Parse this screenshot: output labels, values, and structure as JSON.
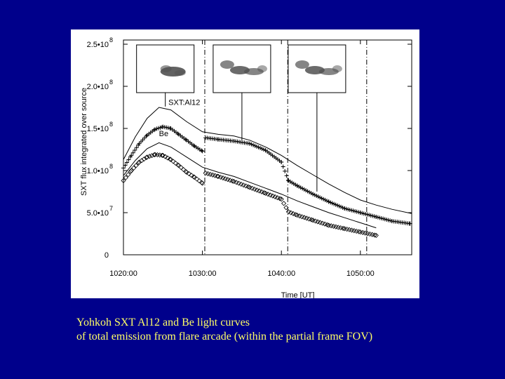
{
  "chart_data": {
    "type": "scatter",
    "xlabel": "Time [UT]",
    "ylabel": "SXT flux integrated over source",
    "x_ticks": [
      "1020:00",
      "1030:00",
      "1040:00",
      "1050:00"
    ],
    "x_tick_minutes": [
      0,
      10,
      20,
      30
    ],
    "xlim_minutes": [
      0,
      36.5
    ],
    "y_ticks": [
      {
        "value": 0,
        "mantissa": "0",
        "exp": ""
      },
      {
        "value": 50000000,
        "mantissa": "5.0•10",
        "exp": "7"
      },
      {
        "value": 100000000,
        "mantissa": "1.0•10",
        "exp": "8"
      },
      {
        "value": 150000000,
        "mantissa": "1.5•10",
        "exp": "8"
      },
      {
        "value": 200000000,
        "mantissa": "2.0•10",
        "exp": "8"
      },
      {
        "value": 250000000,
        "mantissa": "2.5•10",
        "exp": "8"
      }
    ],
    "ylim": [
      0,
      255000000
    ],
    "vertical_markers_minutes": [
      10.3,
      20.8,
      30.8
    ],
    "series": [
      {
        "name": "SXT:Al12",
        "marker": "plus",
        "points": [
          [
            0.0,
            103000000
          ],
          [
            1.0,
            118000000
          ],
          [
            2.0,
            132000000
          ],
          [
            3.0,
            142000000
          ],
          [
            4.0,
            149000000
          ],
          [
            5.0,
            152000000
          ],
          [
            6.0,
            150000000
          ],
          [
            7.0,
            143000000
          ],
          [
            8.0,
            136000000
          ],
          [
            9.0,
            129000000
          ],
          [
            10.0,
            123000000
          ],
          [
            10.4,
            139000000
          ],
          [
            12.0,
            137000000
          ],
          [
            14.0,
            135000000
          ],
          [
            16.0,
            132000000
          ],
          [
            18.0,
            124000000
          ],
          [
            20.0,
            110000000
          ],
          [
            20.9,
            88000000
          ],
          [
            22.0,
            82000000
          ],
          [
            24.0,
            72000000
          ],
          [
            26.0,
            63000000
          ],
          [
            28.0,
            55000000
          ],
          [
            30.0,
            50000000
          ],
          [
            32.0,
            45000000
          ],
          [
            34.0,
            40000000
          ],
          [
            36.3,
            37000000
          ]
        ]
      },
      {
        "name": "Be",
        "marker": "diamond",
        "points": [
          [
            0.0,
            88000000
          ],
          [
            1.0,
            100000000
          ],
          [
            2.0,
            110000000
          ],
          [
            3.0,
            116000000
          ],
          [
            4.0,
            119000000
          ],
          [
            5.0,
            118000000
          ],
          [
            6.0,
            113000000
          ],
          [
            7.0,
            106000000
          ],
          [
            8.0,
            98000000
          ],
          [
            9.0,
            92000000
          ],
          [
            10.0,
            85000000
          ],
          [
            10.4,
            97000000
          ],
          [
            12.0,
            93000000
          ],
          [
            14.0,
            87000000
          ],
          [
            16.0,
            80000000
          ],
          [
            18.0,
            73000000
          ],
          [
            20.0,
            66000000
          ],
          [
            20.9,
            51000000
          ],
          [
            22.0,
            47000000
          ],
          [
            24.0,
            41000000
          ],
          [
            26.0,
            35000000
          ],
          [
            28.0,
            31000000
          ],
          [
            30.0,
            27000000
          ],
          [
            32.0,
            23000000
          ]
        ]
      }
    ],
    "envelope_curves": [
      {
        "points": [
          [
            0.0,
            113000000
          ],
          [
            1.5,
            140000000
          ],
          [
            3.0,
            162000000
          ],
          [
            4.5,
            175000000
          ],
          [
            6.0,
            172000000
          ],
          [
            8.0,
            158000000
          ],
          [
            10.0,
            146000000
          ],
          [
            12.0,
            143000000
          ],
          [
            14.0,
            141000000
          ],
          [
            16.0,
            136000000
          ],
          [
            18.0,
            128000000
          ],
          [
            20.0,
            118000000
          ],
          [
            22.0,
            106000000
          ],
          [
            24.0,
            95000000
          ],
          [
            26.0,
            84000000
          ],
          [
            28.0,
            74000000
          ],
          [
            30.0,
            65000000
          ],
          [
            32.0,
            59000000
          ],
          [
            34.0,
            54000000
          ],
          [
            36.5,
            49000000
          ]
        ]
      },
      {
        "points": [
          [
            0.0,
            94000000
          ],
          [
            1.5,
            112000000
          ],
          [
            3.0,
            126000000
          ],
          [
            4.5,
            133000000
          ],
          [
            6.0,
            128000000
          ],
          [
            8.0,
            116000000
          ],
          [
            10.0,
            104000000
          ],
          [
            12.0,
            98000000
          ],
          [
            14.0,
            93000000
          ],
          [
            16.0,
            86000000
          ],
          [
            18.0,
            79000000
          ],
          [
            20.0,
            72000000
          ],
          [
            22.0,
            64000000
          ],
          [
            24.0,
            57000000
          ],
          [
            26.0,
            50000000
          ],
          [
            28.0,
            44000000
          ],
          [
            30.0,
            38000000
          ],
          [
            32.0,
            32000000
          ]
        ]
      }
    ],
    "annotations": [
      {
        "text": "SXT:Al12",
        "x_minutes": 5.7,
        "y": 178000000
      },
      {
        "text": "Be",
        "x_minutes": 4.5,
        "y": 141000000
      }
    ],
    "inset_images": [
      {
        "x_minutes": 5.3,
        "line_to_y": 176000000
      },
      {
        "x_minutes": 15.0,
        "line_to_y": 136000000
      },
      {
        "x_minutes": 24.5,
        "line_to_y": 75000000
      }
    ]
  },
  "caption": {
    "line1": "Yohkoh SXT Al12 and Be light curves",
    "line2": "of total emission from flare arcade (within the partial frame FOV)"
  },
  "colors": {
    "slide_background": "#00008b",
    "caption_text": "#ffff66",
    "figure_background": "#ffffff"
  }
}
